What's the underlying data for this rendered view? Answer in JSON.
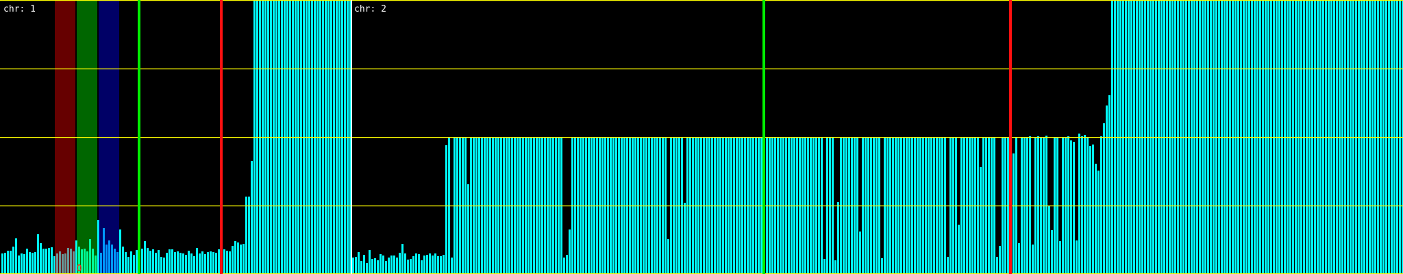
{
  "chart_data": {
    "type": "bar",
    "ylim": [
      0,
      4
    ],
    "grid": {
      "horizontal": true,
      "y_values": [
        0,
        1,
        2,
        3,
        4
      ],
      "color": "#ffff00"
    },
    "colors": {
      "background": "#000000",
      "bar": "#00ffff",
      "separator": "#ffffff",
      "marker_green": "#00ee00",
      "marker_red": "#ff1010",
      "band_red": "#ff0000",
      "band_green": "#00ff00",
      "band_blue": "#0000ff",
      "point_marker": "#ff2020"
    },
    "panels": [
      {
        "label": "chr: 1",
        "values": [
          0.3,
          0.31,
          0.34,
          0.34,
          0.4,
          0.52,
          0.27,
          0.3,
          0.29,
          0.37,
          0.32,
          0.31,
          0.32,
          0.58,
          0.45,
          0.37,
          0.37,
          0.38,
          0.39,
          0.26,
          0.3,
          0.33,
          0.29,
          0.3,
          0.38,
          0.37,
          0.33,
          0.49,
          0.4,
          0.36,
          0.37,
          0.33,
          0.51,
          0.37,
          0.27,
          0.79,
          0.31,
          0.67,
          0.43,
          0.49,
          0.43,
          0.37,
          0.32,
          0.65,
          0.4,
          0.32,
          0.25,
          0.33,
          0.28,
          0.35,
          0.33,
          0.37,
          0.48,
          0.38,
          0.34,
          0.36,
          0.31,
          0.35,
          0.25,
          0.24,
          0.31,
          0.36,
          0.36,
          0.32,
          0.33,
          0.31,
          0.3,
          0.28,
          0.34,
          0.3,
          0.26,
          0.38,
          0.3,
          0.33,
          0.29,
          0.32,
          0.33,
          0.32,
          0.31,
          0.36,
          0.35,
          0.36,
          0.34,
          0.33,
          0.41,
          0.48,
          0.46,
          0.43,
          0.44,
          1.13,
          1.13,
          1.65,
          4,
          4,
          4,
          4,
          4,
          4,
          4,
          4,
          4,
          4,
          4,
          4,
          4,
          4,
          4,
          4,
          4,
          4,
          4,
          4,
          4,
          4,
          4,
          4,
          4,
          4,
          4,
          4,
          4,
          4,
          4,
          4,
          4,
          4,
          4,
          4
        ],
        "bands": [
          {
            "name": "red-band",
            "color": "#ff0000",
            "from_bin": 19.5,
            "to_bin": 27
          },
          {
            "name": "green-band",
            "color": "#00ff00",
            "from_bin": 27.5,
            "to_bin": 35
          },
          {
            "name": "blue-band",
            "color": "#0000ff",
            "from_bin": 35.5,
            "to_bin": 43
          }
        ],
        "vlines": [
          {
            "name": "green-marker-line",
            "color": "#00ee00",
            "bin": 50.25
          },
          {
            "name": "red-marker-line",
            "color": "#ff1010",
            "bin": 80.25
          }
        ],
        "points": [
          {
            "name": "red-ellipse-marker",
            "color": "#ff2020",
            "bin": 28.4,
            "y": 0.08
          }
        ]
      },
      {
        "label": "chr: 2",
        "values": [
          0.24,
          0.25,
          0.32,
          0.19,
          0.28,
          0.16,
          0.35,
          0.22,
          0.23,
          0.2,
          0.29,
          0.27,
          0.19,
          0.24,
          0.27,
          0.27,
          0.24,
          0.31,
          0.44,
          0.3,
          0.21,
          0.22,
          0.26,
          0.3,
          0.29,
          0.2,
          0.27,
          0.28,
          0.3,
          0.27,
          0.3,
          0.26,
          0.26,
          0.28,
          1.88,
          2,
          0.24,
          2,
          2,
          2,
          2,
          2,
          1.31,
          2,
          2,
          2,
          2,
          2,
          2,
          2,
          2,
          2,
          2,
          2,
          2,
          2,
          2,
          2,
          2,
          2,
          2,
          2,
          2,
          2,
          2,
          2,
          2,
          2,
          2,
          2,
          2,
          2,
          2,
          2,
          2,
          2,
          2,
          0.24,
          0.28,
          0.65,
          2,
          2,
          2,
          2,
          2,
          2,
          2,
          2,
          2,
          2,
          2,
          2,
          2,
          2,
          2,
          2,
          2,
          2,
          2,
          2,
          2,
          2,
          2,
          2,
          2,
          2,
          2,
          2,
          2,
          2,
          2,
          2,
          2,
          2,
          2,
          0.51,
          2,
          2,
          2,
          2,
          2,
          1.04,
          2,
          2,
          2,
          2,
          2,
          2,
          2,
          2,
          2,
          2,
          2,
          2,
          2,
          2,
          2,
          2,
          2,
          2,
          2,
          2,
          2,
          2,
          2,
          2,
          2,
          2,
          2,
          2,
          2,
          2,
          2,
          2,
          2,
          2,
          2,
          2,
          2,
          2,
          2,
          2,
          2,
          2,
          2,
          2,
          2,
          2,
          2,
          2,
          2,
          2,
          0.22,
          2,
          2,
          2,
          0.2,
          1.05,
          2,
          2,
          2,
          2,
          2,
          2,
          2,
          0.62,
          2,
          2,
          2,
          2,
          2,
          2,
          2,
          0.23,
          2,
          2,
          2,
          2,
          2,
          2,
          2,
          2,
          2,
          2,
          2,
          2,
          2,
          2,
          2,
          2,
          2,
          2,
          2,
          2,
          2,
          2,
          2,
          0.25,
          2,
          2,
          2,
          0.72,
          2,
          2,
          2,
          2,
          2,
          2,
          2,
          1.56,
          2,
          2,
          2,
          2,
          2,
          0.25,
          0.41,
          2,
          2,
          2,
          2,
          1.76,
          2,
          0.45,
          2,
          2,
          2,
          2.01,
          0.43,
          2,
          2.01,
          2,
          2,
          2.02,
          1.0,
          0.64,
          1.99,
          1.99,
          0.48,
          1.99,
          1.99,
          2.01,
          1.95,
          1.93,
          0.49,
          2.05,
          2.01,
          2.03,
          1.99,
          1.87,
          1.89,
          1.61,
          1.51,
          2.01,
          2.2,
          2.46,
          2.61,
          4,
          4,
          4,
          4,
          4,
          4,
          4,
          4,
          4,
          4,
          4,
          4,
          4,
          4,
          4,
          4,
          4,
          4,
          4,
          4,
          4,
          4,
          4,
          4,
          4,
          4,
          4,
          4,
          4,
          4,
          4,
          4,
          4,
          4,
          4,
          4,
          4,
          4,
          4,
          4,
          4,
          4,
          4,
          4,
          4,
          4,
          4,
          4,
          4,
          4,
          4,
          4,
          4,
          4,
          4,
          4,
          4,
          4,
          4,
          4,
          4,
          4,
          4,
          4,
          4,
          4,
          4,
          4,
          4,
          4,
          4,
          4,
          4,
          4,
          4,
          4,
          4,
          4,
          4,
          4,
          4,
          4,
          4,
          4,
          4,
          4,
          4,
          4,
          4,
          4,
          4,
          4,
          4,
          4,
          4,
          4,
          4,
          4,
          4,
          4,
          4,
          4,
          4,
          4,
          4,
          4,
          4
        ],
        "bands": [],
        "vlines": [
          {
            "name": "green-marker-line",
            "color": "#00ee00",
            "bin": 150.25
          },
          {
            "name": "red-marker-line",
            "color": "#ff1010",
            "bin": 240.25
          }
        ],
        "points": []
      }
    ]
  }
}
